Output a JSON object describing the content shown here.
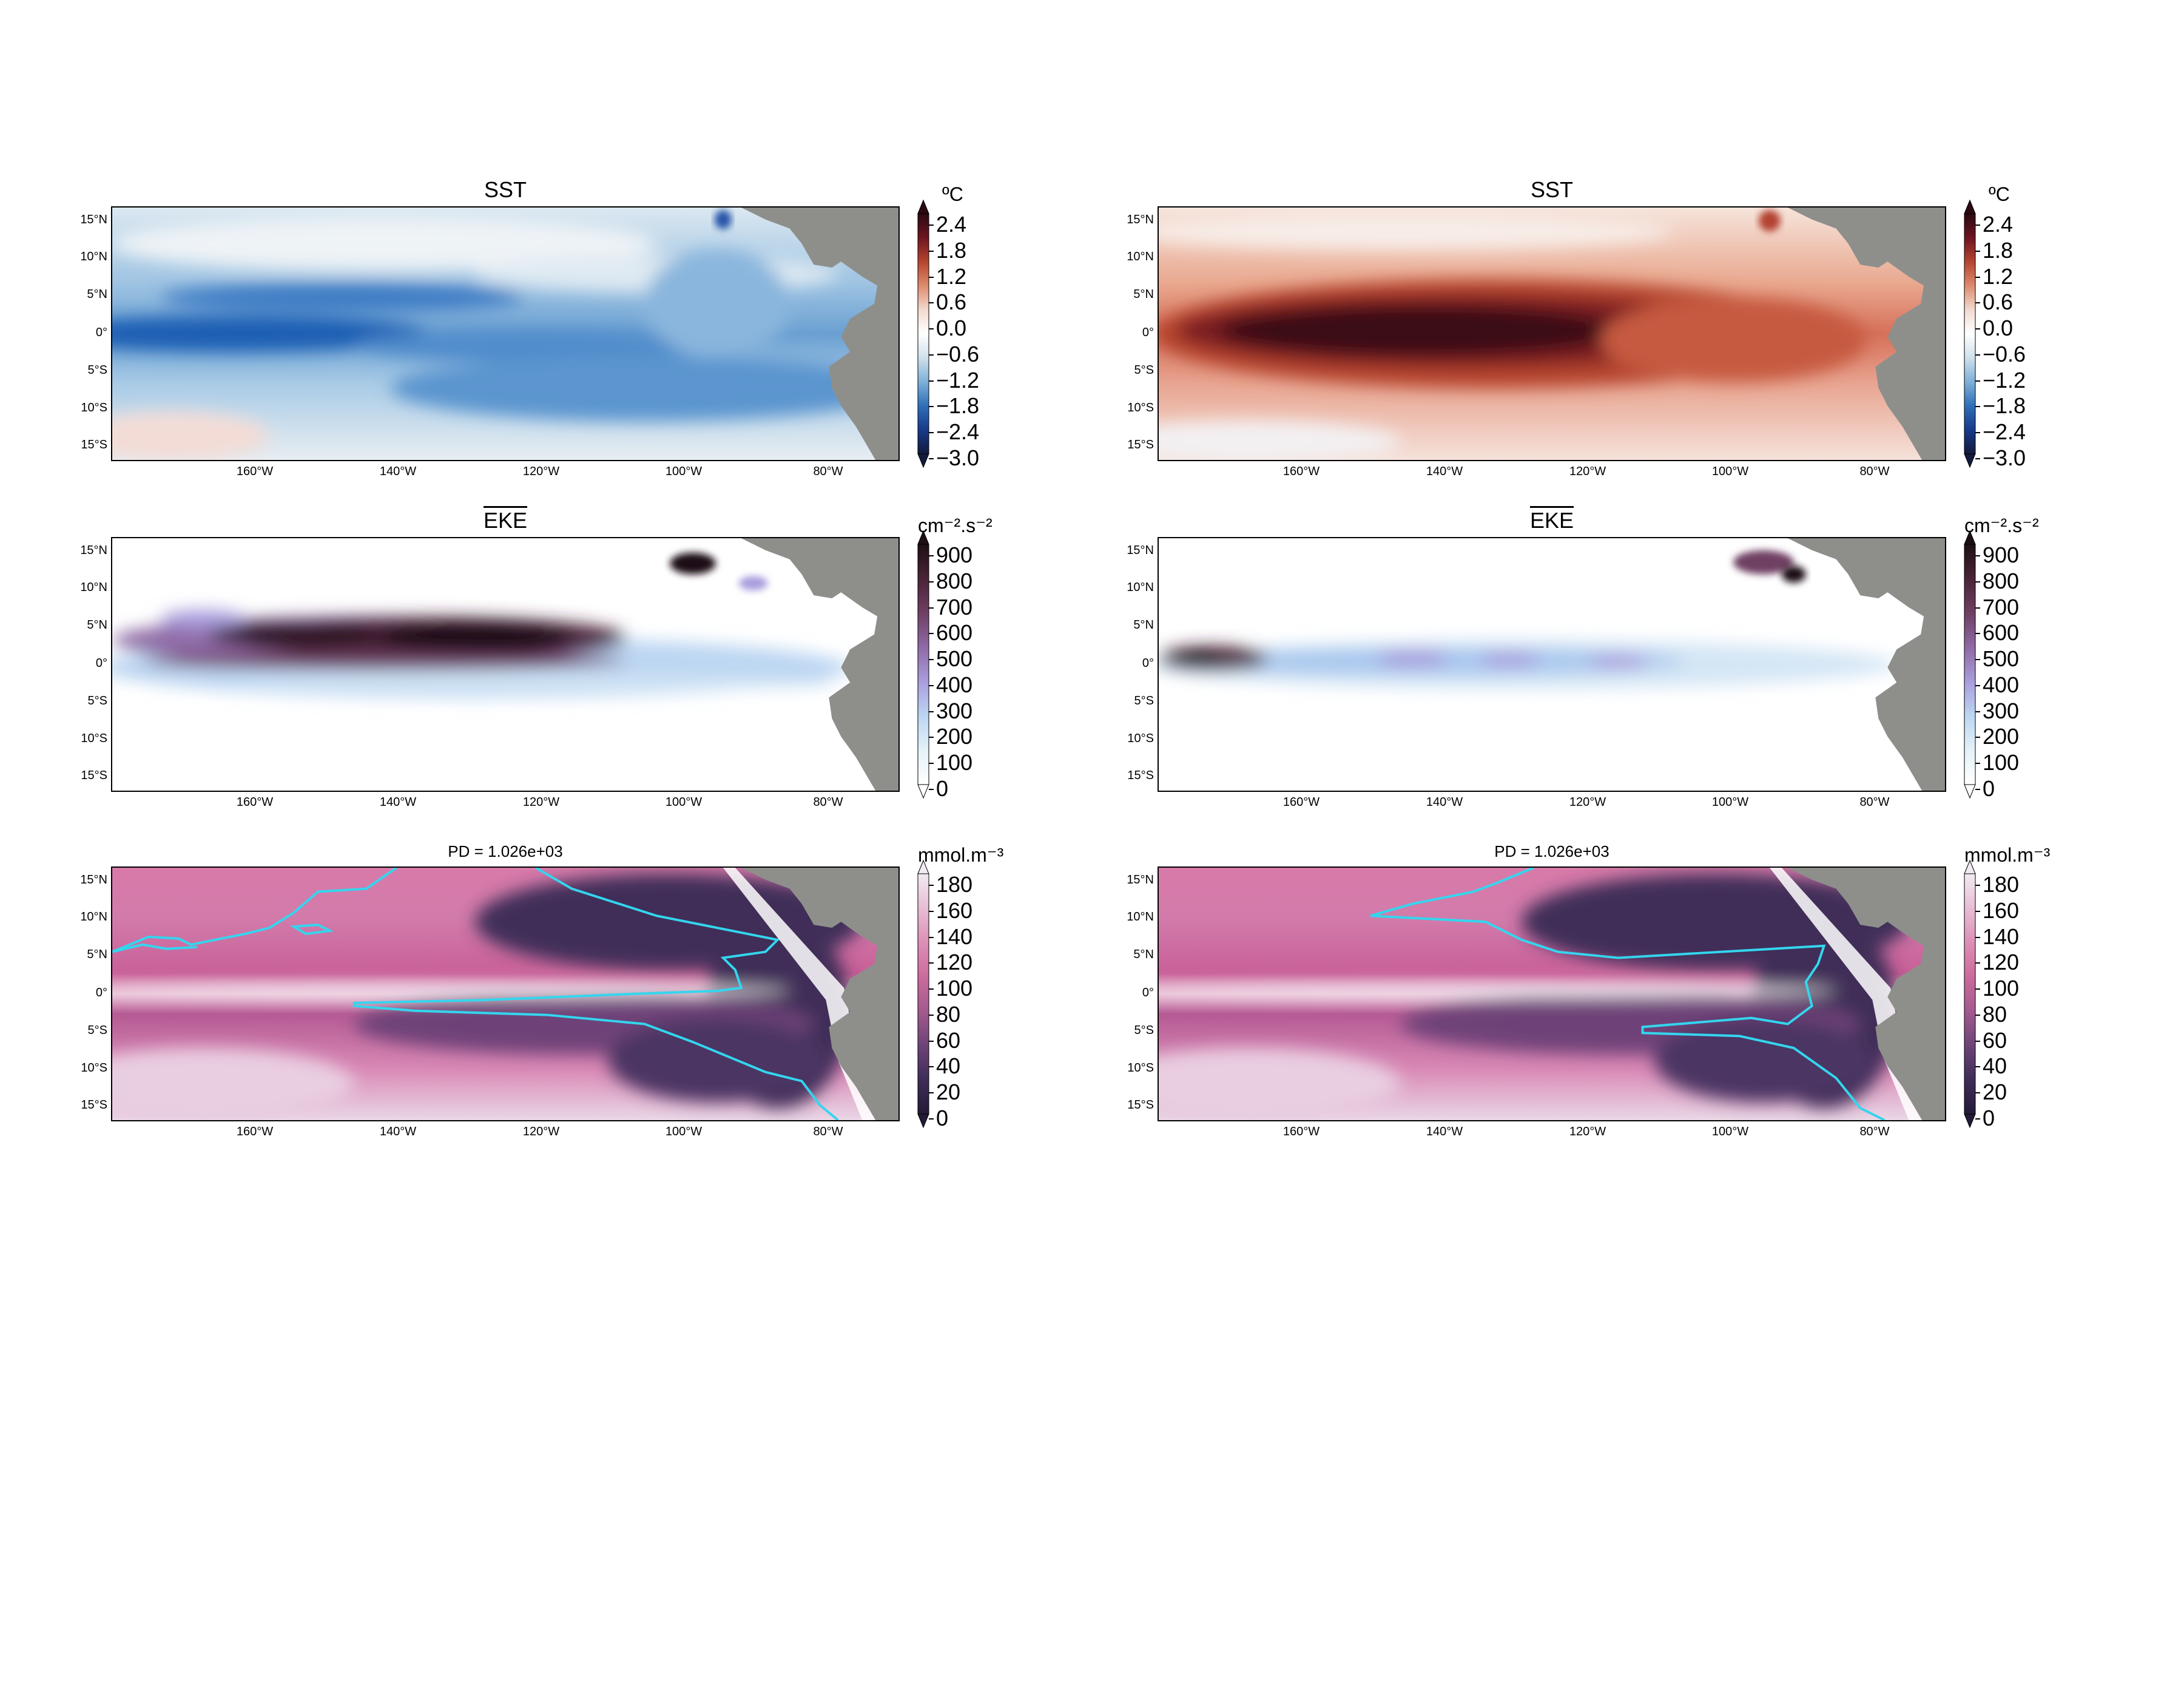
{
  "panels": [
    {
      "id": "sst-left",
      "title": "SST",
      "title_overline": false,
      "title_small": false,
      "cbar": "sst",
      "unit": "ºC",
      "field": "sst_neg",
      "contour": false
    },
    {
      "id": "sst-right",
      "title": "SST",
      "title_overline": false,
      "title_small": false,
      "cbar": "sst",
      "unit": "ºC",
      "field": "sst_pos",
      "contour": false
    },
    {
      "id": "eke-left",
      "title": "EKE",
      "title_overline": true,
      "title_small": false,
      "cbar": "eke",
      "unit": "cm⁻².s⁻²",
      "field": "eke_strong",
      "contour": false
    },
    {
      "id": "eke-right",
      "title": "EKE",
      "title_overline": true,
      "title_small": false,
      "cbar": "eke",
      "unit": "cm⁻².s⁻²",
      "field": "eke_weak",
      "contour": false
    },
    {
      "id": "o2-left",
      "title": "PD = 1.026e+03",
      "title_overline": false,
      "title_small": true,
      "cbar": "o2",
      "unit": "mmol.m⁻³",
      "field": "o2",
      "contour": true
    },
    {
      "id": "o2-right",
      "title": "PD = 1.026e+03",
      "title_overline": false,
      "title_small": true,
      "cbar": "o2",
      "unit": "mmol.m⁻³",
      "field": "o2",
      "contour": true
    }
  ],
  "lat_labels": [
    "15°N",
    "10°N",
    "5°N",
    "0°",
    "5°S",
    "10°S",
    "15°S"
  ],
  "lon_labels": [
    "160°W",
    "140°W",
    "120°W",
    "100°W",
    "80°W"
  ],
  "colorbars": {
    "sst": {
      "ticks": [
        "2.4",
        "1.8",
        "1.2",
        "0.6",
        "0.0",
        "−0.6",
        "−1.2",
        "−1.8",
        "−2.4",
        "−3.0"
      ],
      "colors": [
        "#2c0a12",
        "#6e1421",
        "#b5452e",
        "#dd8b6d",
        "#f3d9cf",
        "#ffffff",
        "#cfe0ec",
        "#7eb0d8",
        "#2f6fb9",
        "#173a8a",
        "#141a3d"
      ]
    },
    "eke": {
      "ticks": [
        "900",
        "800",
        "700",
        "600",
        "500",
        "400",
        "300",
        "200",
        "100",
        "0"
      ],
      "colors": [
        "#1e0f15",
        "#4a2437",
        "#6f3f64",
        "#8f6aa6",
        "#a99ddd",
        "#bcd6f2",
        "#e4f2f8",
        "#ffffff"
      ]
    },
    "o2": {
      "ticks": [
        "180",
        "160",
        "140",
        "120",
        "100",
        "80",
        "60",
        "40",
        "20",
        "0"
      ],
      "colors": [
        "#f1eaf2",
        "#e8bdd4",
        "#dc8fb6",
        "#cc6b9d",
        "#a35a8e",
        "#6e4378",
        "#3f2d58",
        "#241a38"
      ]
    }
  },
  "colors": {
    "land": "#8e8f8b",
    "land_light": "#f1ebea",
    "contour": "#33d6ee"
  }
}
